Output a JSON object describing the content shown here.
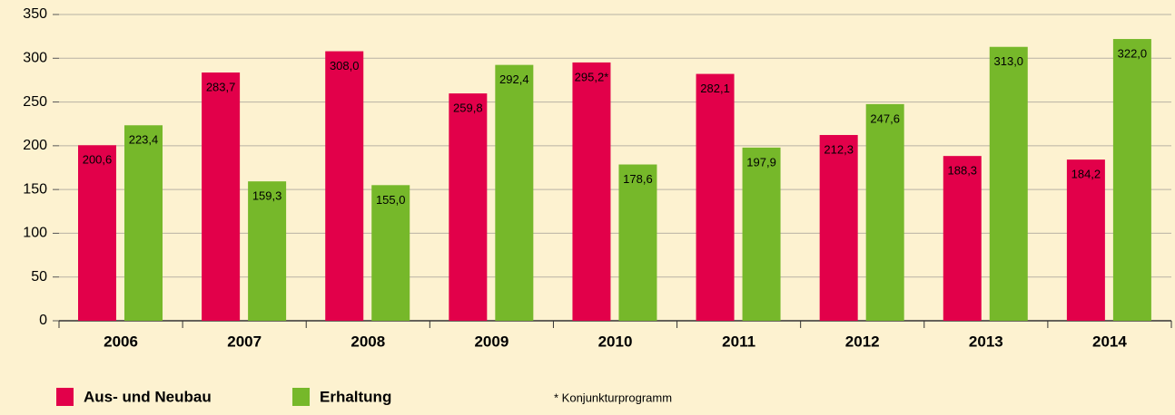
{
  "chart_data": {
    "type": "bar",
    "categories": [
      "2006",
      "2007",
      "2008",
      "2009",
      "2010",
      "2011",
      "2012",
      "2013",
      "2014"
    ],
    "series": [
      {
        "name": "Aus- und Neubau",
        "color": "#e2004a",
        "values": [
          200.6,
          283.7,
          308.0,
          259.8,
          295.2,
          282.1,
          212.3,
          188.3,
          184.2
        ],
        "value_labels": [
          "200,6",
          "283,7",
          "308,0",
          "259,8",
          "295,2*",
          "282,1",
          "212,3",
          "188,3",
          "184,2"
        ]
      },
      {
        "name": "Erhaltung",
        "color": "#76b82a",
        "values": [
          223.4,
          159.3,
          155.0,
          292.4,
          178.6,
          197.9,
          247.6,
          313.0,
          322.0
        ],
        "value_labels": [
          "223,4",
          "159,3",
          "155,0",
          "292,4",
          "178,6",
          "197,9",
          "247,6",
          "313,0",
          "322,0"
        ]
      }
    ],
    "ylim": [
      0,
      350
    ],
    "yticks": [
      0,
      50,
      100,
      150,
      200,
      250,
      300,
      350
    ],
    "grid": true,
    "annotation": "* Konjunkturprogramm"
  }
}
